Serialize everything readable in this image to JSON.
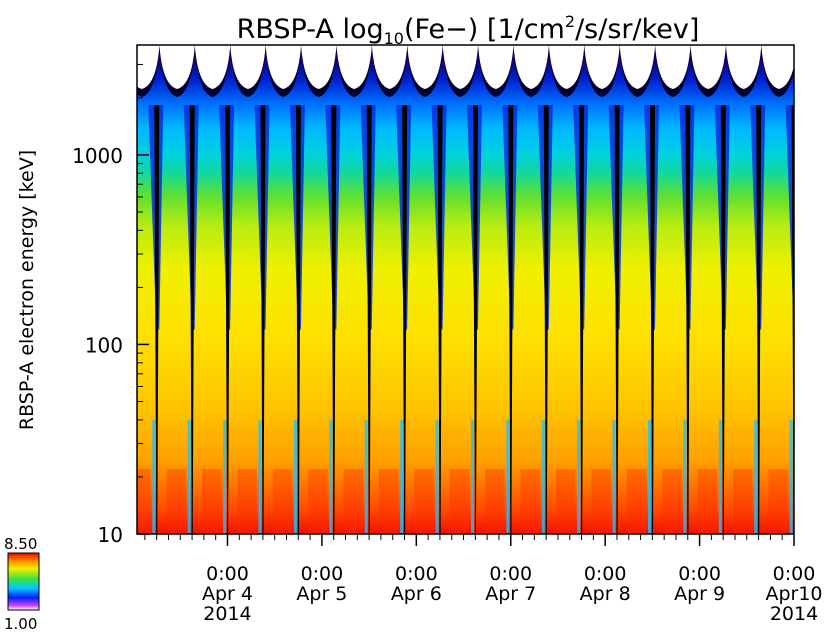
{
  "chart_data": {
    "type": "heatmap",
    "title_parts": {
      "prefix": "RBSP-A  log",
      "sub": "10",
      "middle": "(Fe−) [1/cm",
      "sup": "2",
      "suffix": "/s/sr/kev]"
    },
    "ylabel": "RBSP-A electron energy [keV]",
    "yscale": "log",
    "ylim": [
      10,
      3800
    ],
    "yticks": [
      {
        "value": 10,
        "label": "10"
      },
      {
        "value": 100,
        "label": "100"
      },
      {
        "value": 1000,
        "label": "1000"
      }
    ],
    "xlim": [
      "2014-04-03T01:00",
      "2014-04-10T00:00"
    ],
    "xtick_labels": [
      {
        "time": "0:00",
        "date": "Apr 4",
        "year": "2014"
      },
      {
        "time": "0:00",
        "date": "Apr 5",
        "year": ""
      },
      {
        "time": "0:00",
        "date": "Apr 6",
        "year": ""
      },
      {
        "time": "0:00",
        "date": "Apr 7",
        "year": ""
      },
      {
        "time": "0:00",
        "date": "Apr 8",
        "year": ""
      },
      {
        "time": "0:00",
        "date": "Apr 9",
        "year": ""
      },
      {
        "time": "0:00",
        "date": "Apr10",
        "year": "2014"
      }
    ],
    "orbit_period_hours": 9,
    "colorbar": {
      "min": 1.0,
      "max": 8.5,
      "min_label": "1.00",
      "max_label": "8.50",
      "colormap": [
        "#f00000",
        "#ff7a00",
        "#ffd000",
        "#e8f000",
        "#60e020",
        "#00d8c0",
        "#00c8ff",
        "#0050ff",
        "#0000b8",
        "#200060",
        "#000000"
      ]
    }
  }
}
